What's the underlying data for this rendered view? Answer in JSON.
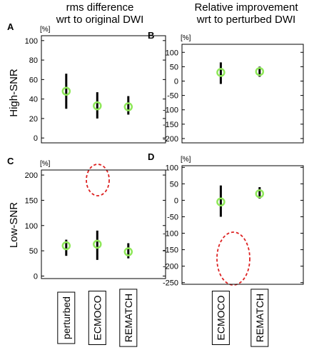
{
  "column_titles": [
    "rms difference\nwrt to original DWI",
    "Relative improvement\nwrt to perturbed DWI"
  ],
  "row_labels": [
    "High-SNR",
    "Low-SNR"
  ],
  "chart_data": [
    {
      "type": "range",
      "label": "A",
      "ylabel": "[%]",
      "categories": [
        null,
        null,
        null
      ],
      "values": [
        48,
        33,
        32
      ],
      "low": [
        30,
        20,
        24
      ],
      "high": [
        66,
        47,
        43
      ],
      "color": "#8fe85a",
      "ylim": [
        -5,
        105
      ],
      "yticks": [
        0,
        20,
        40,
        60,
        80,
        100
      ]
    },
    {
      "type": "range",
      "label": "B",
      "ylabel": "[%]",
      "categories": [
        null,
        null
      ],
      "values": [
        30,
        33
      ],
      "low": [
        -10,
        15
      ],
      "high": [
        65,
        50
      ],
      "color": "#8fe85a",
      "ylim": [
        -215,
        128
      ],
      "yticks": [
        -200,
        -150,
        -100,
        -50,
        0,
        50,
        100
      ]
    },
    {
      "type": "range",
      "label": "C",
      "ylabel": "[%]",
      "categories": [
        "perturbed",
        "ECMOCO",
        "REMATCH"
      ],
      "values": [
        60,
        63,
        48
      ],
      "low": [
        40,
        32,
        35
      ],
      "high": [
        72,
        90,
        65
      ],
      "color": "#8fe85a",
      "ylim": [
        -5,
        210
      ],
      "yticks": [
        0,
        50,
        100,
        150,
        200
      ]
    },
    {
      "type": "range",
      "label": "D",
      "ylabel": "[%]",
      "categories": [
        "ECMOCO",
        "REMATCH"
      ],
      "values": [
        -5,
        20
      ],
      "low": [
        -50,
        5
      ],
      "high": [
        45,
        40
      ],
      "color": "#8fe85a",
      "ylim": [
        -255,
        105
      ],
      "yticks": [
        -250,
        -200,
        -150,
        -100,
        -50,
        0,
        50,
        100
      ]
    }
  ]
}
